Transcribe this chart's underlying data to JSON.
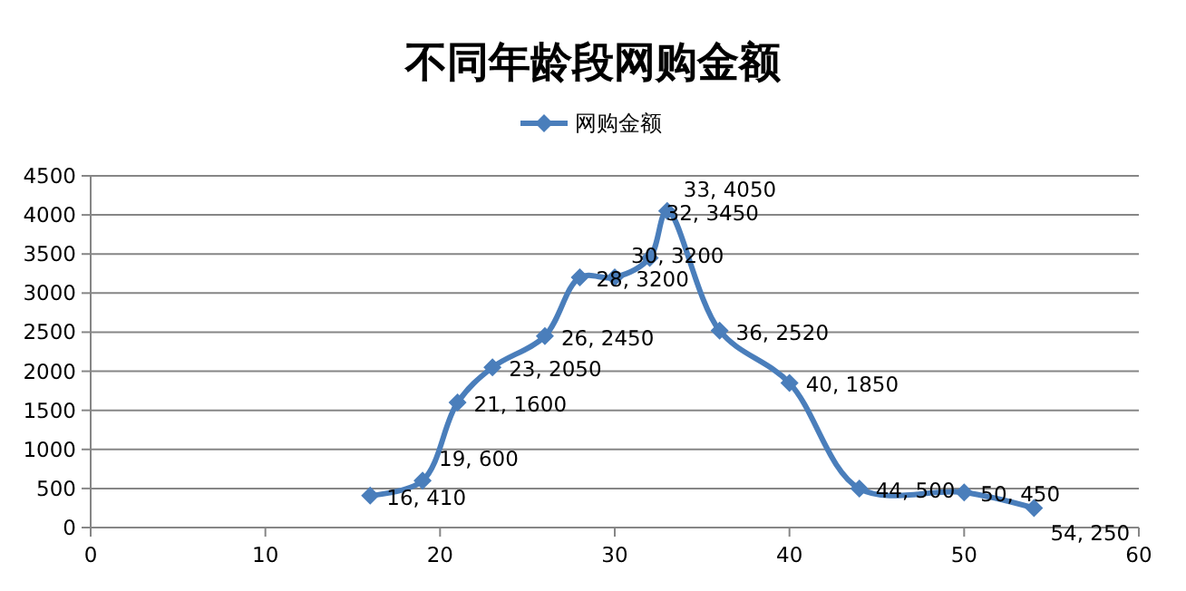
{
  "chart_data": {
    "type": "line",
    "title": "不同年龄段网购金额",
    "x": [
      16,
      19,
      21,
      23,
      26,
      28,
      30,
      32,
      33,
      36,
      40,
      44,
      50,
      54
    ],
    "series": [
      {
        "name": "网购金额",
        "color": "#4a7ebb",
        "values": [
          410,
          600,
          1600,
          2050,
          2450,
          3200,
          3200,
          3450,
          4050,
          2520,
          1850,
          500,
          450,
          250
        ],
        "value_labels": [
          "16, 410",
          "19, 600",
          "21, 1600",
          "23, 2050",
          "26, 2450",
          "28, 3200",
          "30, 3200",
          "32, 3450",
          "33, 4050",
          "36, 2520",
          "40, 1850",
          "44, 500",
          "50, 450",
          "54, 250"
        ]
      }
    ],
    "xlim": [
      0,
      60
    ],
    "xticks": [
      0,
      10,
      20,
      30,
      40,
      50,
      60
    ],
    "ylim": [
      0,
      4500
    ],
    "yticks": [
      0,
      500,
      1000,
      1500,
      2000,
      2500,
      3000,
      3500,
      4000,
      4500
    ],
    "grid": "y",
    "legend": "top",
    "marker": "diamond",
    "line_style": "solid"
  }
}
